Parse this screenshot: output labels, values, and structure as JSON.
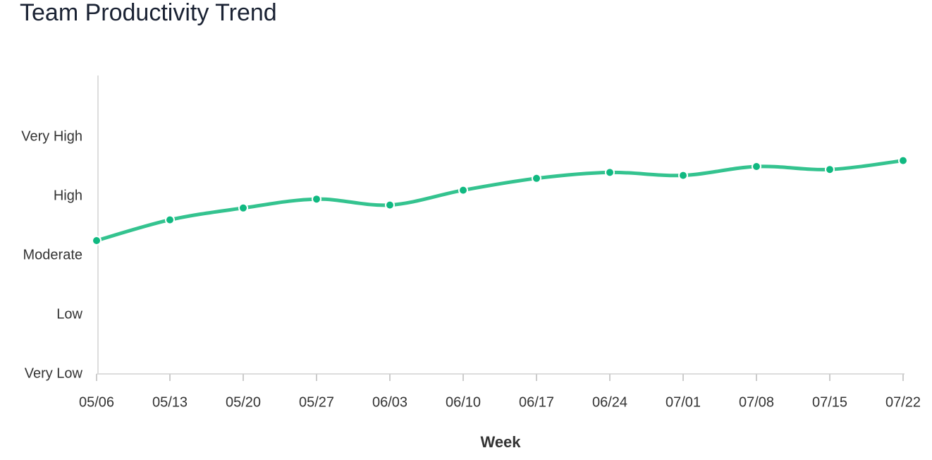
{
  "chart_data": {
    "type": "line",
    "title": "Team Productivity Trend",
    "x_label": "Week",
    "categories": [
      "05/06",
      "05/13",
      "05/20",
      "05/27",
      "06/03",
      "06/10",
      "06/17",
      "06/24",
      "07/01",
      "07/08",
      "07/15",
      "07/22"
    ],
    "values": [
      3.25,
      3.6,
      3.8,
      3.95,
      3.85,
      4.1,
      4.3,
      4.4,
      4.35,
      4.5,
      4.45,
      4.6
    ],
    "color": "#34c38f",
    "ylim": [
      1,
      6
    ],
    "yticks": [
      {
        "value": 1,
        "label": "Very Low"
      },
      {
        "value": 2,
        "label": "Low"
      },
      {
        "value": 3,
        "label": "Moderate"
      },
      {
        "value": 4,
        "label": "High"
      },
      {
        "value": 5,
        "label": "Very High"
      }
    ],
    "grid": false
  }
}
